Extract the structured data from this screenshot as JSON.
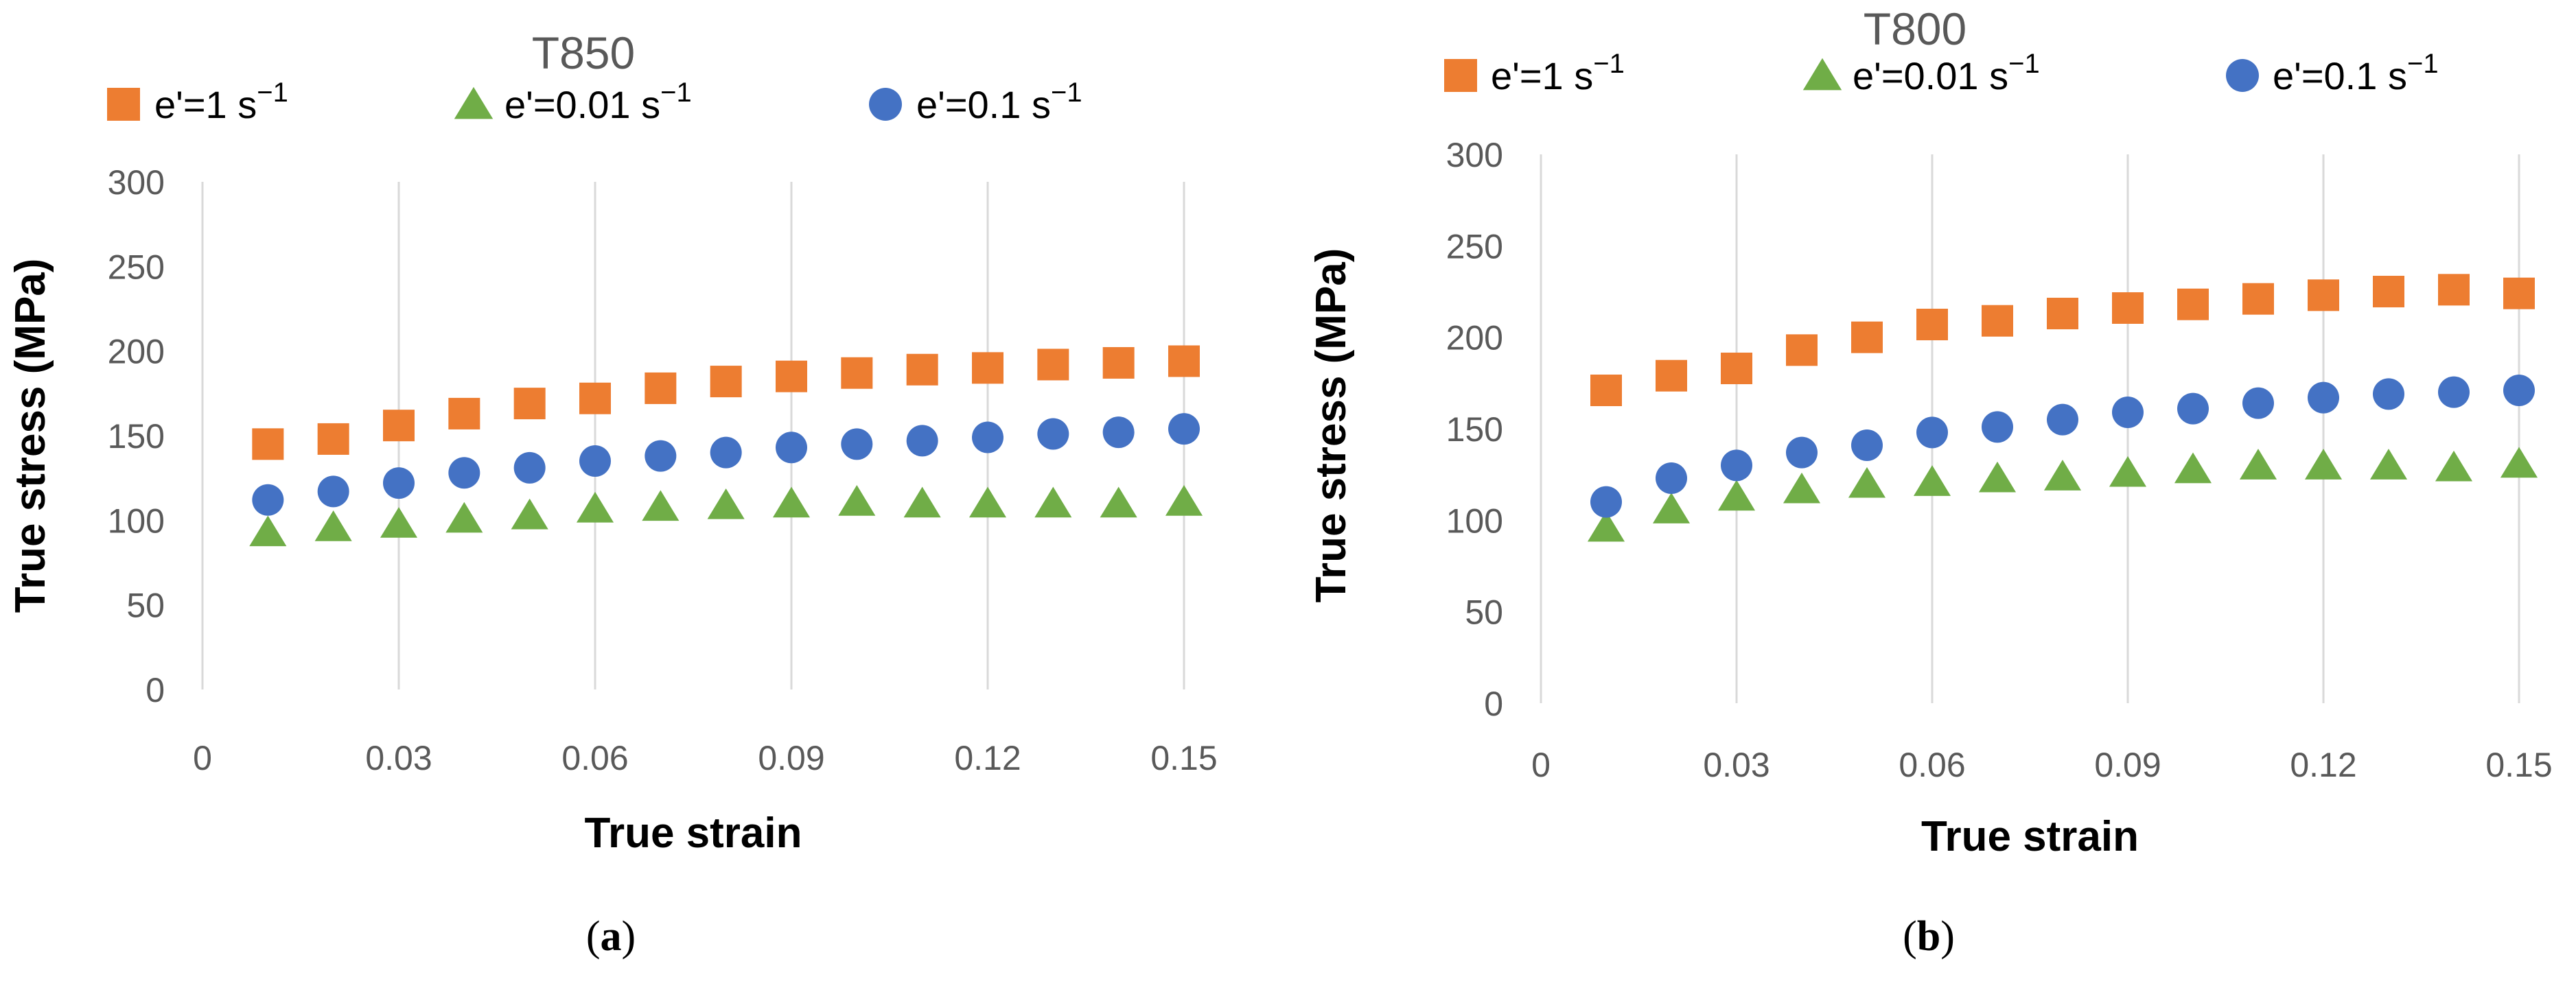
{
  "chart_data": [
    {
      "type": "scatter",
      "title": "T850",
      "xlabel": "True strain",
      "ylabel": "True stress (MPa)",
      "xlim": [
        0,
        0.15
      ],
      "ylim": [
        0,
        300
      ],
      "xticks": [
        "0",
        "0.03",
        "0.06",
        "0.09",
        "0.12",
        "0.15"
      ],
      "yticks": [
        "0",
        "50",
        "100",
        "150",
        "200",
        "250",
        "300"
      ],
      "grid": "vertical",
      "legend": "top",
      "x": [
        0.01,
        0.02,
        0.03,
        0.04,
        0.05,
        0.06,
        0.07,
        0.08,
        0.09,
        0.1,
        0.11,
        0.12,
        0.13,
        0.14,
        0.15
      ],
      "series": [
        {
          "name": "e'=1 s",
          "unit_sup": "−1",
          "marker": "square",
          "color": "#ED7D31",
          "values": [
            145,
            148,
            156,
            163,
            169,
            172,
            178,
            182,
            185,
            187,
            189,
            190,
            192,
            193,
            194
          ]
        },
        {
          "name": "e'=0.01 s",
          "unit_sup": "−1",
          "marker": "triangle",
          "color": "#70AD47",
          "values": [
            93,
            96,
            98,
            101,
            103,
            107,
            108,
            109,
            110,
            111,
            110,
            110,
            110,
            110,
            111
          ]
        },
        {
          "name": "e'=0.1 s",
          "unit_sup": "−1",
          "marker": "circle",
          "color": "#4472C4",
          "values": [
            112,
            117,
            122,
            128,
            131,
            135,
            138,
            140,
            143,
            145,
            147,
            149,
            151,
            152,
            154
          ]
        }
      ]
    },
    {
      "type": "scatter",
      "title": "T800",
      "xlabel": "True strain",
      "ylabel": "True stress (MPa)",
      "xlim": [
        0,
        0.15
      ],
      "ylim": [
        0,
        300
      ],
      "xticks": [
        "0",
        "0.03",
        "0.06",
        "0.09",
        "0.12",
        "0.15"
      ],
      "yticks": [
        "0",
        "50",
        "100",
        "150",
        "200",
        "250",
        "300"
      ],
      "grid": "vertical",
      "legend": "top",
      "x": [
        0.01,
        0.02,
        0.03,
        0.04,
        0.05,
        0.06,
        0.07,
        0.08,
        0.09,
        0.1,
        0.11,
        0.12,
        0.13,
        0.14,
        0.15
      ],
      "series": [
        {
          "name": "e'=1 s",
          "unit_sup": "−1",
          "marker": "square",
          "color": "#ED7D31",
          "values": [
            171,
            179,
            183,
            193,
            200,
            207,
            209,
            213,
            216,
            218,
            221,
            223,
            225,
            226,
            224
          ]
        },
        {
          "name": "e'=0.01 s",
          "unit_sup": "−1",
          "marker": "triangle",
          "color": "#70AD47",
          "values": [
            96,
            106,
            113,
            117,
            120,
            121,
            123,
            124,
            126,
            128,
            130,
            130,
            130,
            129,
            131
          ]
        },
        {
          "name": "e'=0.1 s",
          "unit_sup": "−1",
          "marker": "circle",
          "color": "#4472C4",
          "values": [
            110,
            123,
            130,
            137,
            141,
            148,
            151,
            155,
            159,
            161,
            164,
            167,
            169,
            170,
            171
          ]
        }
      ]
    }
  ],
  "captions": {
    "a": "a",
    "b": "b"
  }
}
